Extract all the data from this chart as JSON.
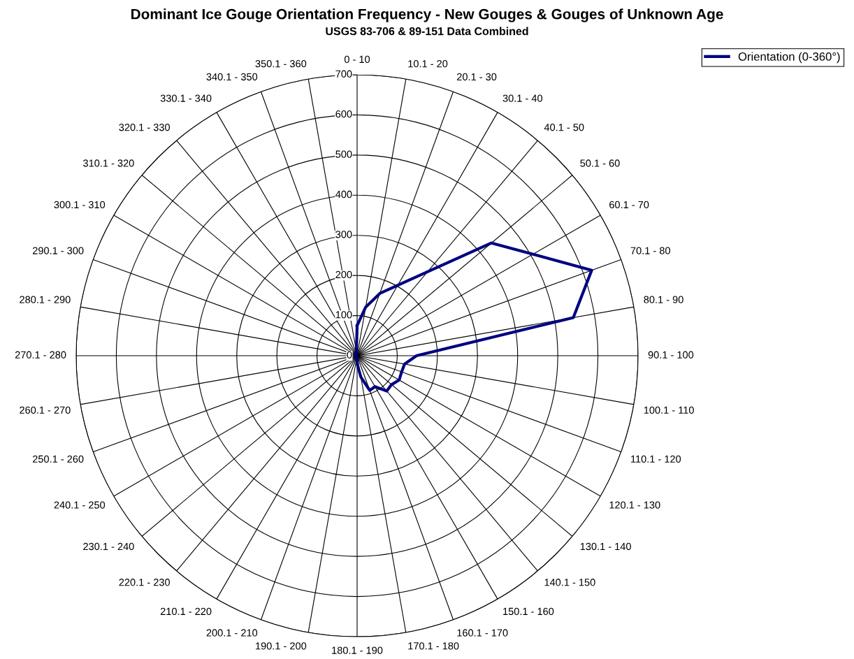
{
  "chart_data": {
    "type": "radar",
    "title": "Dominant Ice Gouge Orientation Frequency - New Gouges & Gouges of Unknown Age",
    "subtitle": "USGS 83-706 & 89-151 Data Combined",
    "categories": [
      "0 - 10",
      "10.1 - 20",
      "20.1 - 30",
      "30.1 - 40",
      "40.1 - 50",
      "50.1 - 60",
      "60.1 - 70",
      "70.1 - 80",
      "80.1 - 90",
      "90.1 - 100",
      "100.1 - 110",
      "110.1 - 120",
      "120.1 - 130",
      "130.1 - 140",
      "140.1 - 150",
      "150.1 - 160",
      "160.1 - 170",
      "170.1 - 180",
      "180.1 - 190",
      "190.1 - 200",
      "200.1 - 210",
      "210.1 - 220",
      "220.1 - 230",
      "230.1 - 240",
      "240.1 - 250",
      "250.1 - 260",
      "260.1 - 270",
      "270.1 - 280",
      "280.1 - 290",
      "290.1 - 300",
      "300.1 - 310",
      "310.1 - 320",
      "320.1 - 330",
      "330.1 - 340",
      "340.1 - 350",
      "350.1 - 360"
    ],
    "series": [
      {
        "name": "Orientation (0-360°)",
        "color": "#000080",
        "values": [
          75,
          123,
          165,
          203,
          273,
          437,
          506,
          622,
          547,
          148,
          120,
          118,
          121,
          112,
          115,
          89,
          92,
          54,
          20,
          5,
          5,
          5,
          5,
          5,
          5,
          5,
          5,
          5,
          5,
          5,
          5,
          5,
          5,
          5,
          5,
          10
        ]
      }
    ],
    "ylim": [
      0,
      700
    ],
    "yticks": [
      0,
      100,
      200,
      300,
      400,
      500,
      600,
      700
    ],
    "grid": true,
    "legend": "top right",
    "marker": "none",
    "line_style": "solid"
  }
}
